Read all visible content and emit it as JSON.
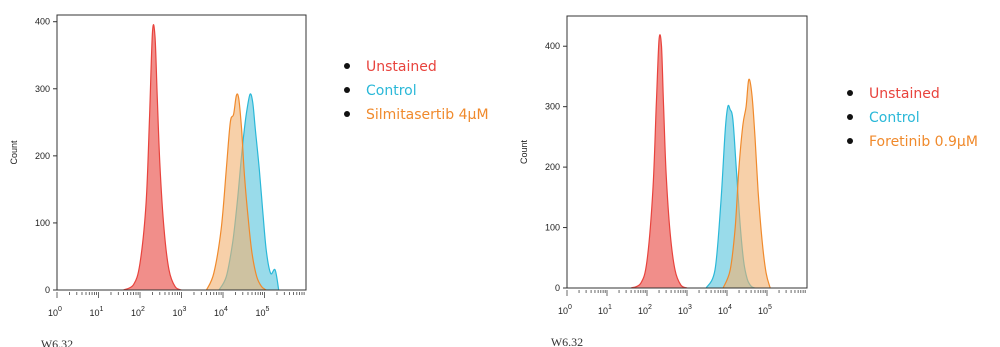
{
  "colors": {
    "unstained": "#e8433d",
    "control": "#2ab8d8",
    "treatment": "#f08a2c",
    "unstained_fill": "#ef7a76",
    "control_fill": "#55c3dc",
    "treatment_fill": "#f2b170",
    "overlap_fill": "#a9a97a"
  },
  "chart_data": [
    {
      "type": "area",
      "xlabel": "W6.32",
      "ylabel": "Count",
      "x_scale": "log10",
      "xlim": [
        1,
        1000000
      ],
      "x_ticks": [
        {
          "value": 1,
          "base": "10",
          "exp": "0"
        },
        {
          "value": 10,
          "base": "10",
          "exp": "1"
        },
        {
          "value": 100,
          "base": "10",
          "exp": "2"
        },
        {
          "value": 1000,
          "base": "10",
          "exp": "3"
        },
        {
          "value": 10000,
          "base": "10",
          "exp": "4"
        },
        {
          "value": 100000,
          "base": "10",
          "exp": "5"
        }
      ],
      "ylim": [
        0,
        410
      ],
      "y_ticks": [
        "0",
        "100",
        "200",
        "300",
        "400"
      ],
      "legend": [
        {
          "name": "Unstained",
          "color": "#e8433d"
        },
        {
          "name": "Control",
          "color": "#2ab8d8"
        },
        {
          "name": "Silmitasertib 4µM",
          "color": "#f08a2c"
        }
      ],
      "series": [
        {
          "name": "Unstained",
          "x": [
            40,
            70,
            100,
            140,
            170,
            200,
            230,
            260,
            300,
            380,
            500,
            700,
            1000
          ],
          "y": [
            0,
            8,
            40,
            130,
            260,
            385,
            378,
            290,
            190,
            90,
            30,
            5,
            0
          ]
        },
        {
          "name": "Control",
          "x": [
            8000,
            12000,
            17000,
            22000,
            27000,
            32000,
            38000,
            45000,
            52000,
            60000,
            75000,
            90000,
            110000,
            140000,
            180000,
            220000
          ],
          "y": [
            0,
            20,
            70,
            130,
            190,
            235,
            270,
            292,
            280,
            240,
            180,
            120,
            60,
            25,
            30,
            0
          ]
        },
        {
          "name": "Silmitasertib 4µM",
          "x": [
            4000,
            6000,
            9000,
            12000,
            15000,
            18000,
            21000,
            24000,
            28000,
            33000,
            40000,
            50000,
            65000,
            85000,
            110000
          ],
          "y": [
            0,
            25,
            90,
            180,
            250,
            262,
            290,
            285,
            240,
            170,
            110,
            55,
            20,
            5,
            0
          ]
        }
      ]
    },
    {
      "type": "area",
      "xlabel": "W6.32",
      "ylabel": "Count",
      "x_scale": "log10",
      "xlim": [
        1,
        1000000
      ],
      "x_ticks": [
        {
          "value": 1,
          "base": "10",
          "exp": "0"
        },
        {
          "value": 10,
          "base": "10",
          "exp": "1"
        },
        {
          "value": 100,
          "base": "10",
          "exp": "2"
        },
        {
          "value": 1000,
          "base": "10",
          "exp": "3"
        },
        {
          "value": 10000,
          "base": "10",
          "exp": "4"
        },
        {
          "value": 100000,
          "base": "10",
          "exp": "5"
        }
      ],
      "ylim": [
        0,
        450
      ],
      "y_ticks": [
        "0",
        "100",
        "200",
        "300",
        "400"
      ],
      "legend": [
        {
          "name": "Unstained",
          "color": "#e8433d"
        },
        {
          "name": "Control",
          "color": "#2ab8d8"
        },
        {
          "name": "Foretinib 0.9µM",
          "color": "#f08a2c"
        }
      ],
      "series": [
        {
          "name": "Unstained",
          "x": [
            40,
            70,
            100,
            140,
            170,
            200,
            230,
            260,
            300,
            380,
            500,
            700,
            1000
          ],
          "y": [
            0,
            8,
            45,
            160,
            300,
            410,
            400,
            300,
            190,
            90,
            30,
            5,
            0
          ]
        },
        {
          "name": "Control",
          "x": [
            3000,
            5000,
            7000,
            9000,
            10500,
            12000,
            14000,
            17000,
            21000,
            26000,
            32000,
            40000,
            50000
          ],
          "y": [
            0,
            30,
            140,
            260,
            300,
            295,
            280,
            200,
            110,
            45,
            15,
            3,
            0
          ]
        },
        {
          "name": "Foretinib 0.9µM",
          "x": [
            8000,
            12000,
            16000,
            20000,
            25000,
            30000,
            35000,
            42000,
            50000,
            60000,
            75000,
            95000,
            120000
          ],
          "y": [
            0,
            30,
            100,
            200,
            270,
            300,
            345,
            320,
            250,
            160,
            80,
            25,
            0
          ]
        }
      ]
    }
  ]
}
